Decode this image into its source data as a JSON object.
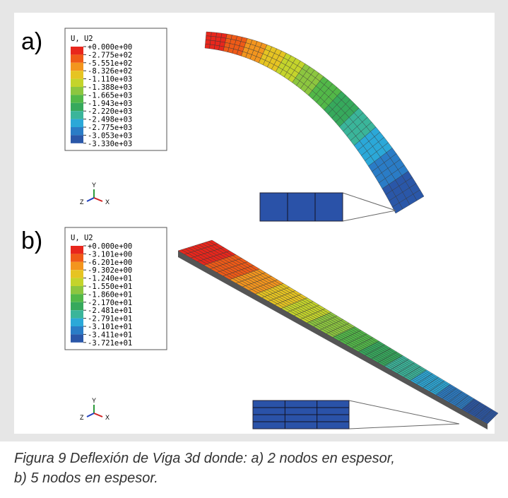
{
  "panels": [
    {
      "label": "a)",
      "legend": {
        "title": "U, U2",
        "labels": [
          "+0.000e+00",
          "-2.775e+02",
          "-5.551e+02",
          "-8.326e+02",
          "-1.110e+03",
          "-1.388e+03",
          "-1.665e+03",
          "-1.943e+03",
          "-2.220e+03",
          "-2.498e+03",
          "-2.775e+03",
          "-3.053e+03",
          "-3.330e+03"
        ]
      },
      "axes": {
        "y": "Y",
        "z": "Z",
        "x": "X"
      }
    },
    {
      "label": "b)",
      "legend": {
        "title": "U, U2",
        "labels": [
          "+0.000e+00",
          "-3.101e+00",
          "-6.201e+00",
          "-9.302e+00",
          "-1.240e+01",
          "-1.550e+01",
          "-1.860e+01",
          "-2.170e+01",
          "-2.481e+01",
          "-2.791e+01",
          "-3.101e+01",
          "-3.411e+01",
          "-3.721e+01"
        ]
      },
      "axes": {
        "y": "Y",
        "z": "Z",
        "x": "X"
      }
    }
  ],
  "caption": {
    "lines": [
      "Figura 9 Deflexión de Viga 3d donde: a) 2 nodos en espesor,",
      "b) 5 nodos en espesor."
    ]
  }
}
